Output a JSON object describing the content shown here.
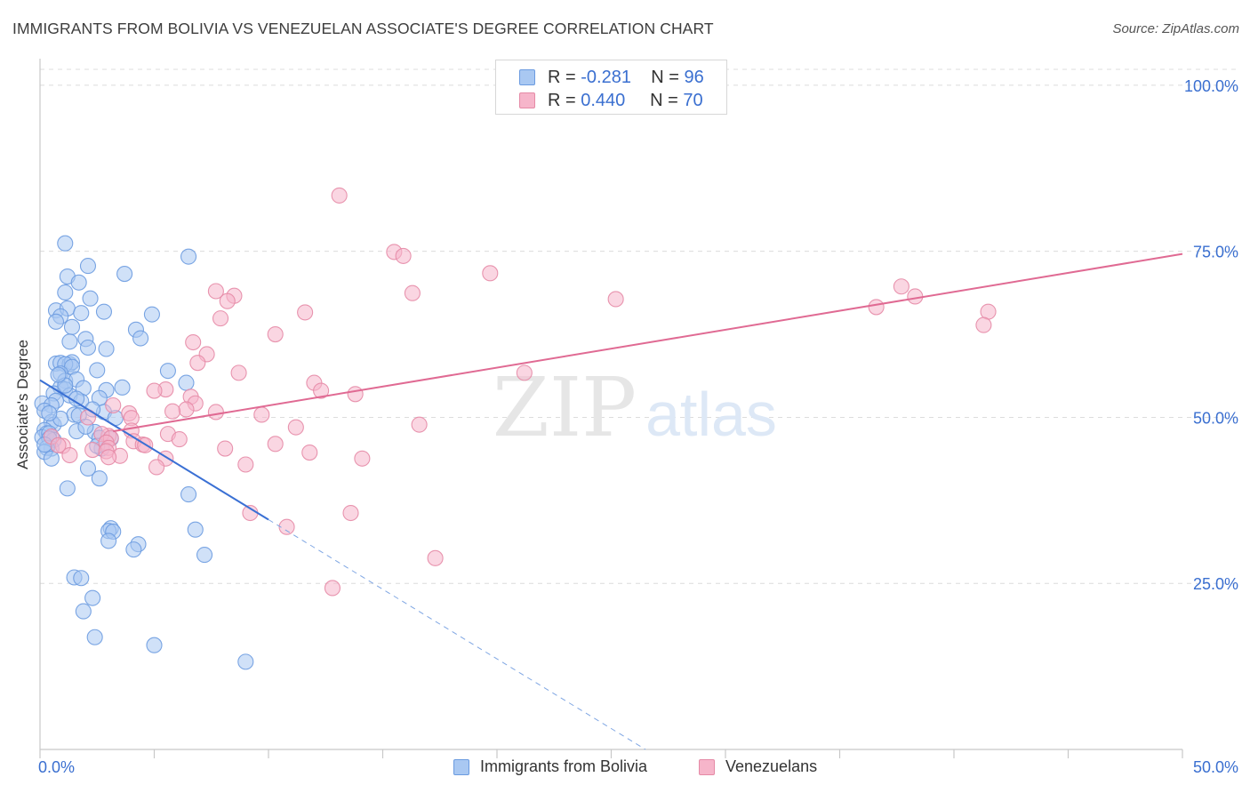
{
  "header": {
    "title": "IMMIGRANTS FROM BOLIVIA VS VENEZUELAN ASSOCIATE'S DEGREE CORRELATION CHART",
    "source": "Source: ZipAtlas.com"
  },
  "watermark": {
    "zip": "ZIP",
    "atlas": "atlas"
  },
  "legend_stats": [
    {
      "r_label": "R = ",
      "r_value": "-0.281",
      "n_label": "N = ",
      "n_value": "96",
      "color": "#a9c8f2"
    },
    {
      "r_label": "R = ",
      "r_value": "0.440",
      "n_label": "N = ",
      "n_value": "70",
      "color": "#f6b5ca"
    }
  ],
  "chart_data": {
    "type": "scatter",
    "title": "IMMIGRANTS FROM BOLIVIA VS VENEZUELAN ASSOCIATE'S DEGREE CORRELATION CHART",
    "xlabel": "",
    "ylabel": "Associate's Degree",
    "xlim": [
      0,
      50
    ],
    "ylim": [
      0,
      104
    ],
    "x_tick_labels": [
      "0.0%",
      "50.0%"
    ],
    "y_ticks": [
      25,
      50,
      75,
      100
    ],
    "y_tick_labels": [
      "25.0%",
      "50.0%",
      "75.0%",
      "100.0%"
    ],
    "grid": "horizontal dashed",
    "legend_position": "bottom",
    "series": [
      {
        "name": "Immigrants from Bolivia",
        "color": "#6b9be0",
        "fill": "#a9c8f2",
        "trend": {
          "x": [
            0,
            10
          ],
          "y": [
            55.6,
            34.6
          ],
          "dashed_to": [
            26.5,
            0
          ]
        },
        "points": [
          [
            1.1,
            76.2
          ],
          [
            6.5,
            74.2
          ],
          [
            3.7,
            71.6
          ],
          [
            2.1,
            72.8
          ],
          [
            1.2,
            71.2
          ],
          [
            1.7,
            70.3
          ],
          [
            1.1,
            68.8
          ],
          [
            2.2,
            67.9
          ],
          [
            0.7,
            66.1
          ],
          [
            1.2,
            66.4
          ],
          [
            2.8,
            65.9
          ],
          [
            4.9,
            65.5
          ],
          [
            0.9,
            65.2
          ],
          [
            1.8,
            65.7
          ],
          [
            0.7,
            64.4
          ],
          [
            1.4,
            63.6
          ],
          [
            4.2,
            63.2
          ],
          [
            4.4,
            61.9
          ],
          [
            2.0,
            61.8
          ],
          [
            1.3,
            61.4
          ],
          [
            2.1,
            60.5
          ],
          [
            2.9,
            60.3
          ],
          [
            0.7,
            58.1
          ],
          [
            0.9,
            58.2
          ],
          [
            1.3,
            58.0
          ],
          [
            1.4,
            58.3
          ],
          [
            1.1,
            58.0
          ],
          [
            1.4,
            57.6
          ],
          [
            2.5,
            57.1
          ],
          [
            5.6,
            57.0
          ],
          [
            0.9,
            56.6
          ],
          [
            1.1,
            55.5
          ],
          [
            1.6,
            55.7
          ],
          [
            6.4,
            55.2
          ],
          [
            1.9,
            54.4
          ],
          [
            2.9,
            54.1
          ],
          [
            0.9,
            54.5
          ],
          [
            1.1,
            54.2
          ],
          [
            3.6,
            54.5
          ],
          [
            0.6,
            53.6
          ],
          [
            1.3,
            53.3
          ],
          [
            2.6,
            52.9
          ],
          [
            0.7,
            52.5
          ],
          [
            1.8,
            52.4
          ],
          [
            0.1,
            52.1
          ],
          [
            0.5,
            51.8
          ],
          [
            0.2,
            51.0
          ],
          [
            2.8,
            50.8
          ],
          [
            1.5,
            50.4
          ],
          [
            2.3,
            51.2
          ],
          [
            1.7,
            50.3
          ],
          [
            0.5,
            49.3
          ],
          [
            0.6,
            48.9
          ],
          [
            0.2,
            48.1
          ],
          [
            0.3,
            47.6
          ],
          [
            2.4,
            47.8
          ],
          [
            1.6,
            47.9
          ],
          [
            3.3,
            49.9
          ],
          [
            0.1,
            47.0
          ],
          [
            0.4,
            47.6
          ],
          [
            2.6,
            46.9
          ],
          [
            0.6,
            46.6
          ],
          [
            0.4,
            46.8
          ],
          [
            3.1,
            46.8
          ],
          [
            2.7,
            45.3
          ],
          [
            0.5,
            45.3
          ],
          [
            0.3,
            45.4
          ],
          [
            0.2,
            44.8
          ],
          [
            0.5,
            43.8
          ],
          [
            0.2,
            45.9
          ],
          [
            2.1,
            42.3
          ],
          [
            2.6,
            40.8
          ],
          [
            1.2,
            39.3
          ],
          [
            6.5,
            38.4
          ],
          [
            3.1,
            33.3
          ],
          [
            3.0,
            32.9
          ],
          [
            3.2,
            32.8
          ],
          [
            6.8,
            33.1
          ],
          [
            3.0,
            31.4
          ],
          [
            4.3,
            30.9
          ],
          [
            4.1,
            30.1
          ],
          [
            7.2,
            29.3
          ],
          [
            1.5,
            25.9
          ],
          [
            1.8,
            25.8
          ],
          [
            2.3,
            22.8
          ],
          [
            1.9,
            20.8
          ],
          [
            2.4,
            16.9
          ],
          [
            5.0,
            15.7
          ],
          [
            9.0,
            13.2
          ],
          [
            0.9,
            49.8
          ],
          [
            1.6,
            52.8
          ],
          [
            0.4,
            50.6
          ],
          [
            2.0,
            48.6
          ],
          [
            1.1,
            54.8
          ],
          [
            0.8,
            56.4
          ],
          [
            2.5,
            45.7
          ]
        ]
      },
      {
        "name": "Venezuelans",
        "color": "#e58aa6",
        "fill": "#f6b5ca",
        "trend": {
          "x": [
            3.2,
            50
          ],
          "y": [
            47.9,
            74.6
          ]
        },
        "points": [
          [
            13.1,
            83.4
          ],
          [
            15.5,
            74.9
          ],
          [
            15.9,
            74.3
          ],
          [
            19.7,
            71.7
          ],
          [
            25.2,
            67.8
          ],
          [
            37.7,
            69.7
          ],
          [
            38.3,
            68.2
          ],
          [
            16.3,
            68.7
          ],
          [
            7.7,
            69.0
          ],
          [
            8.5,
            68.3
          ],
          [
            8.2,
            67.5
          ],
          [
            36.6,
            66.6
          ],
          [
            41.5,
            65.9
          ],
          [
            11.6,
            65.8
          ],
          [
            7.9,
            64.9
          ],
          [
            41.3,
            63.9
          ],
          [
            10.3,
            62.5
          ],
          [
            6.7,
            61.3
          ],
          [
            7.3,
            59.5
          ],
          [
            6.9,
            58.2
          ],
          [
            21.2,
            56.7
          ],
          [
            8.7,
            56.7
          ],
          [
            12.0,
            55.2
          ],
          [
            12.3,
            54.0
          ],
          [
            13.8,
            53.5
          ],
          [
            5.5,
            54.2
          ],
          [
            5.0,
            54.0
          ],
          [
            6.6,
            53.1
          ],
          [
            6.8,
            52.1
          ],
          [
            3.2,
            51.8
          ],
          [
            6.4,
            51.2
          ],
          [
            7.7,
            50.8
          ],
          [
            3.9,
            50.6
          ],
          [
            9.7,
            50.4
          ],
          [
            5.8,
            50.9
          ],
          [
            2.1,
            50.0
          ],
          [
            4.0,
            49.9
          ],
          [
            16.6,
            48.9
          ],
          [
            11.2,
            48.5
          ],
          [
            4.0,
            48.0
          ],
          [
            3.0,
            47.2
          ],
          [
            2.7,
            47.5
          ],
          [
            5.6,
            47.5
          ],
          [
            3.1,
            46.9
          ],
          [
            6.1,
            46.7
          ],
          [
            4.1,
            46.4
          ],
          [
            2.9,
            46.2
          ],
          [
            10.3,
            46.0
          ],
          [
            4.5,
            45.9
          ],
          [
            8.1,
            45.3
          ],
          [
            4.6,
            45.8
          ],
          [
            1.0,
            45.7
          ],
          [
            3.0,
            45.4
          ],
          [
            2.3,
            45.1
          ],
          [
            2.9,
            44.9
          ],
          [
            11.8,
            44.7
          ],
          [
            3.5,
            44.2
          ],
          [
            3.0,
            44.0
          ],
          [
            5.5,
            43.8
          ],
          [
            14.1,
            43.8
          ],
          [
            1.3,
            44.3
          ],
          [
            9.0,
            42.9
          ],
          [
            5.1,
            42.5
          ],
          [
            0.5,
            47.1
          ],
          [
            0.8,
            45.8
          ],
          [
            13.6,
            35.6
          ],
          [
            9.2,
            35.6
          ],
          [
            10.8,
            33.5
          ],
          [
            17.3,
            28.8
          ],
          [
            12.8,
            24.3
          ]
        ]
      }
    ]
  },
  "bottom_legend": [
    {
      "label": "Immigrants from Bolivia",
      "color": "#a9c8f2"
    },
    {
      "label": "Venezuelans",
      "color": "#f6b5ca"
    }
  ]
}
